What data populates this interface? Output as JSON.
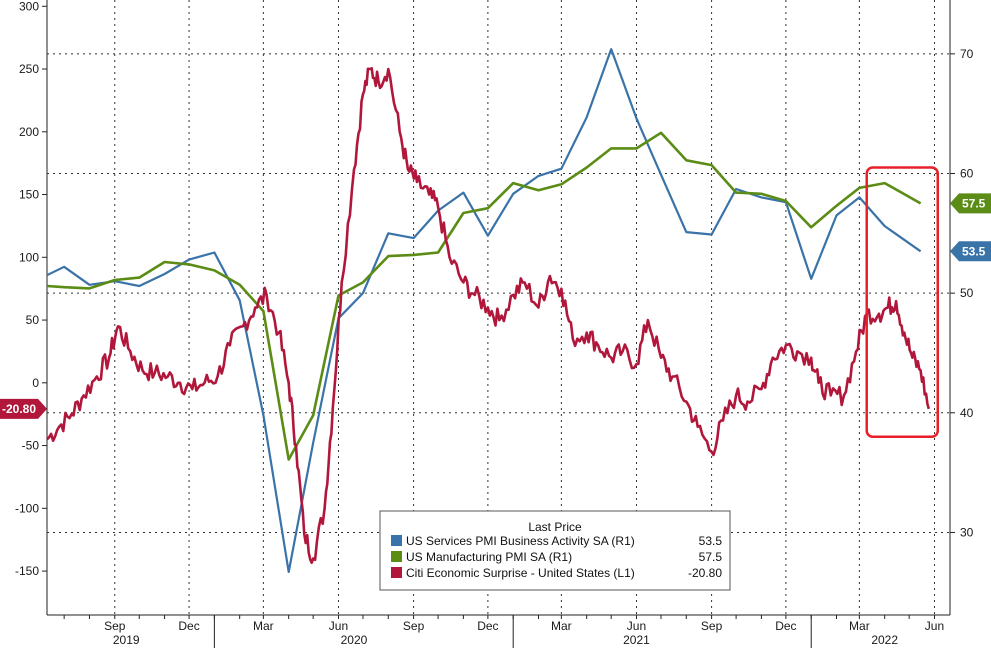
{
  "chart_data": {
    "type": "line",
    "title": "",
    "colors": {
      "services": "#3a73a8",
      "manufacturing": "#5b8c15",
      "citi": "#b1173b",
      "highlight": "#e8202a"
    },
    "x_axis": {
      "range": [
        "2019-06-10",
        "2022-06-20"
      ],
      "month_ticks": [
        {
          "date": "2019-09-01",
          "label": "Sep"
        },
        {
          "date": "2019-12-01",
          "label": "Dec"
        },
        {
          "date": "2020-03-01",
          "label": "Mar"
        },
        {
          "date": "2020-06-01",
          "label": "Jun"
        },
        {
          "date": "2020-09-01",
          "label": "Sep"
        },
        {
          "date": "2020-12-01",
          "label": "Dec"
        },
        {
          "date": "2021-03-01",
          "label": "Mar"
        },
        {
          "date": "2021-06-01",
          "label": "Jun"
        },
        {
          "date": "2021-09-01",
          "label": "Sep"
        },
        {
          "date": "2021-12-01",
          "label": "Dec"
        },
        {
          "date": "2022-03-01",
          "label": "Mar"
        },
        {
          "date": "2022-06-01",
          "label": "Jun"
        }
      ],
      "years": [
        {
          "date": "2019-09-15",
          "label": "2019"
        },
        {
          "date": "2020-06-20",
          "label": "2020"
        },
        {
          "date": "2021-06-01",
          "label": "2021"
        },
        {
          "date": "2022-04-01",
          "label": "2022"
        }
      ]
    },
    "left_axis": {
      "range": [
        -185,
        305
      ],
      "ticks": [
        300,
        250,
        200,
        150,
        100,
        50,
        0,
        -50,
        -100,
        -150
      ]
    },
    "right_axis": {
      "range": [
        23.1,
        74.5
      ],
      "ticks": [
        70,
        60,
        50,
        40,
        30
      ]
    },
    "grid": true,
    "legend": {
      "title": "Last Price",
      "placement": "bottom-center",
      "entries": [
        {
          "label": "US Services PMI Business Activity SA  (R1)",
          "value": "53.5",
          "color": "#3a73a8"
        },
        {
          "label": "US Manufacturing PMI SA  (R1)",
          "value": "57.5",
          "color": "#5b8c15"
        },
        {
          "label": "Citi Economic Surprise - United States  (L1)",
          "value": "-20.80",
          "color": "#b1173b"
        }
      ]
    },
    "last_price_badges": {
      "citi": "-20.80",
      "manufacturing": "57.5",
      "services": "53.5"
    },
    "highlight_box": {
      "x_range": [
        "2022-03-10",
        "2022-06-05"
      ],
      "y_range_right": [
        38.0,
        60.5
      ]
    },
    "series": [
      {
        "name": "US Services PMI Business Activity SA",
        "axis": "right",
        "x": [
          "2019-06-10",
          "2019-07-01",
          "2019-08-01",
          "2019-09-01",
          "2019-10-01",
          "2019-11-01",
          "2019-12-01",
          "2020-01-01",
          "2020-02-01",
          "2020-03-01",
          "2020-04-01",
          "2020-05-01",
          "2020-06-01",
          "2020-07-01",
          "2020-08-01",
          "2020-09-01",
          "2020-10-01",
          "2020-11-01",
          "2020-12-01",
          "2021-01-01",
          "2021-02-01",
          "2021-03-01",
          "2021-04-01",
          "2021-05-01",
          "2021-06-01",
          "2021-07-01",
          "2021-08-01",
          "2021-09-01",
          "2021-10-01",
          "2021-11-01",
          "2021-12-01",
          "2022-01-01",
          "2022-02-01",
          "2022-03-01",
          "2022-04-01",
          "2022-05-15"
        ],
        "y": [
          51.5,
          52.2,
          50.7,
          51.0,
          50.6,
          51.6,
          52.8,
          53.4,
          49.4,
          39.8,
          26.7,
          37.5,
          47.9,
          50.0,
          55.0,
          54.6,
          56.9,
          58.4,
          54.8,
          58.3,
          59.8,
          60.4,
          64.7,
          70.4,
          64.6,
          59.9,
          55.1,
          54.9,
          58.7,
          58.0,
          57.6,
          51.2,
          56.5,
          58.0,
          55.6,
          53.5
        ]
      },
      {
        "name": "US Manufacturing PMI SA",
        "axis": "right",
        "x": [
          "2019-06-10",
          "2019-07-01",
          "2019-08-01",
          "2019-09-01",
          "2019-10-01",
          "2019-11-01",
          "2019-12-01",
          "2020-01-01",
          "2020-02-01",
          "2020-03-01",
          "2020-04-01",
          "2020-05-01",
          "2020-06-01",
          "2020-07-01",
          "2020-08-01",
          "2020-09-01",
          "2020-10-01",
          "2020-11-01",
          "2020-12-01",
          "2021-01-01",
          "2021-02-01",
          "2021-03-01",
          "2021-04-01",
          "2021-05-01",
          "2021-06-01",
          "2021-07-01",
          "2021-08-01",
          "2021-09-01",
          "2021-10-01",
          "2021-11-01",
          "2021-12-01",
          "2022-01-01",
          "2022-02-01",
          "2022-03-01",
          "2022-04-01",
          "2022-05-15"
        ],
        "y": [
          50.6,
          50.5,
          50.4,
          51.1,
          51.3,
          52.6,
          52.4,
          51.9,
          50.7,
          48.5,
          36.1,
          39.8,
          49.8,
          50.9,
          53.1,
          53.2,
          53.4,
          56.7,
          57.1,
          59.2,
          58.6,
          59.1,
          60.5,
          62.1,
          62.1,
          63.4,
          61.1,
          60.7,
          58.4,
          58.3,
          57.7,
          55.5,
          57.3,
          58.8,
          59.2,
          57.5
        ]
      },
      {
        "name": "Citi Economic Surprise - United States",
        "axis": "left",
        "x": [
          "2019-06-10",
          "2019-06-25",
          "2019-07-10",
          "2019-07-25",
          "2019-08-10",
          "2019-08-25",
          "2019-09-05",
          "2019-09-20",
          "2019-10-05",
          "2019-10-20",
          "2019-11-05",
          "2019-11-20",
          "2019-12-05",
          "2019-12-20",
          "2020-01-05",
          "2020-01-20",
          "2020-02-05",
          "2020-02-20",
          "2020-03-05",
          "2020-03-20",
          "2020-04-01",
          "2020-04-10",
          "2020-04-20",
          "2020-05-01",
          "2020-05-15",
          "2020-05-25",
          "2020-06-05",
          "2020-06-20",
          "2020-07-01",
          "2020-07-10",
          "2020-07-20",
          "2020-08-01",
          "2020-08-15",
          "2020-08-25",
          "2020-09-05",
          "2020-09-20",
          "2020-10-01",
          "2020-10-15",
          "2020-11-01",
          "2020-11-15",
          "2020-12-01",
          "2020-12-15",
          "2021-01-01",
          "2021-01-15",
          "2021-02-01",
          "2021-02-15",
          "2021-03-01",
          "2021-03-15",
          "2021-04-01",
          "2021-04-15",
          "2021-05-01",
          "2021-05-15",
          "2021-06-01",
          "2021-06-15",
          "2021-07-01",
          "2021-07-15",
          "2021-08-01",
          "2021-08-15",
          "2021-09-01",
          "2021-09-15",
          "2021-10-01",
          "2021-10-15",
          "2021-11-01",
          "2021-11-15",
          "2021-12-01",
          "2021-12-15",
          "2022-01-01",
          "2022-01-10",
          "2022-01-25",
          "2022-02-10",
          "2022-02-25",
          "2022-03-10",
          "2022-03-25",
          "2022-04-05",
          "2022-04-15",
          "2022-04-25",
          "2022-05-05",
          "2022-05-15",
          "2022-05-25"
        ],
        "y": [
          -45,
          -35,
          -25,
          -10,
          5,
          20,
          45,
          25,
          10,
          8,
          5,
          0,
          -5,
          0,
          5,
          30,
          45,
          60,
          70,
          40,
          0,
          -50,
          -120,
          -140,
          -100,
          -20,
          80,
          170,
          230,
          250,
          240,
          250,
          200,
          170,
          160,
          150,
          140,
          100,
          80,
          70,
          60,
          50,
          70,
          80,
          60,
          85,
          75,
          35,
          40,
          30,
          20,
          25,
          15,
          50,
          20,
          5,
          -15,
          -35,
          -55,
          -30,
          -10,
          -15,
          -5,
          20,
          30,
          25,
          20,
          0,
          -10,
          -10,
          25,
          55,
          55,
          60,
          65,
          40,
          20,
          10,
          -20.8
        ]
      }
    ]
  }
}
